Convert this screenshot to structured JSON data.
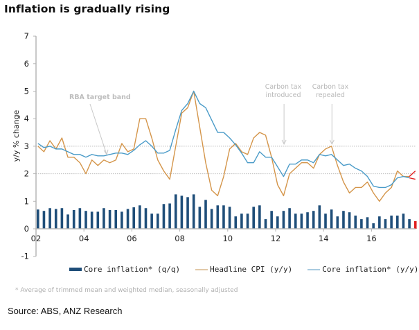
{
  "page": {
    "title": "Inflation is gradually rising",
    "footnote": "* Average of trimmed mean and weighted median, seasonally adjusted",
    "source": "Source: ABS, ANZ Research"
  },
  "chart_data": {
    "type": "bar+line",
    "title": "Inflation is gradually rising",
    "xlabel": "",
    "ylabel": "y/y % change",
    "ylim": [
      -1,
      7
    ],
    "yticks": [
      "7",
      "6",
      "5",
      "4",
      "3",
      "2",
      "1",
      "0",
      "-1"
    ],
    "ytick_values": [
      7,
      6,
      5,
      4,
      3,
      2,
      1,
      0,
      -1
    ],
    "xticks": [
      "02",
      "04",
      "06",
      "08",
      "10",
      "12",
      "14",
      "16"
    ],
    "xtick_years": [
      2002,
      2004,
      2006,
      2008,
      2010,
      2012,
      2014,
      2016
    ],
    "x_start": "2002Q1",
    "frequency": "quarterly",
    "reference_lines": [
      {
        "y": 2,
        "style": "dotted",
        "color": "#bbbbbb"
      },
      {
        "y": 3,
        "style": "dotted",
        "color": "#bbbbbb"
      }
    ],
    "annotations": [
      {
        "text": "RBA target band",
        "bold": true,
        "target_x": 2004.95,
        "target_y": 2.7
      },
      {
        "text_lines": [
          "Carbon tax",
          "introduced"
        ],
        "bold": false,
        "target_x": 2012.35,
        "target_y": 3.0
      },
      {
        "text_lines": [
          "Carbon tax",
          "repealed"
        ],
        "bold": false,
        "target_x": 2014.35,
        "target_y": 3.0
      }
    ],
    "legend": [
      {
        "label": "Core inflation* (q/q)",
        "type": "bar",
        "color": "#1f4e79"
      },
      {
        "label": "Headline CPI (y/y)",
        "type": "line",
        "color": "#d4954a"
      },
      {
        "label": "Core inflation* (y/y)",
        "type": "line",
        "color": "#4a9bc8"
      }
    ],
    "legend_position": "bottom",
    "latest_highlight_color": "#e02020",
    "series": [
      {
        "name": "Core inflation* (q/q)",
        "type": "bar",
        "color": "#1f4e79",
        "values": [
          0.7,
          0.65,
          0.75,
          0.72,
          0.75,
          0.52,
          0.68,
          0.75,
          0.65,
          0.62,
          0.62,
          0.75,
          0.68,
          0.68,
          0.62,
          0.72,
          0.78,
          0.85,
          0.75,
          0.55,
          0.55,
          0.9,
          0.92,
          1.25,
          1.2,
          1.15,
          1.25,
          0.8,
          1.05,
          0.72,
          0.85,
          0.85,
          0.8,
          0.45,
          0.55,
          0.55,
          0.8,
          0.85,
          0.35,
          0.65,
          0.45,
          0.65,
          0.75,
          0.55,
          0.55,
          0.6,
          0.65,
          0.85,
          0.55,
          0.7,
          0.45,
          0.65,
          0.6,
          0.48,
          0.35,
          0.42,
          0.2,
          0.45,
          0.35,
          0.48,
          0.48,
          0.55,
          0.35,
          0.28
        ]
      },
      {
        "name": "Headline CPI (y/y)",
        "type": "line",
        "color": "#d4954a",
        "values": [
          3.0,
          2.8,
          3.2,
          2.9,
          3.3,
          2.6,
          2.6,
          2.4,
          2.0,
          2.5,
          2.3,
          2.5,
          2.4,
          2.5,
          3.1,
          2.8,
          2.9,
          4.0,
          4.0,
          3.3,
          2.5,
          2.1,
          1.8,
          3.0,
          4.2,
          4.4,
          5.0,
          3.7,
          2.4,
          1.4,
          1.2,
          1.9,
          2.9,
          3.1,
          2.8,
          2.7,
          3.3,
          3.5,
          3.4,
          2.6,
          1.6,
          1.2,
          2.0,
          2.2,
          2.4,
          2.4,
          2.2,
          2.7,
          2.9,
          3.0,
          2.3,
          1.7,
          1.3,
          1.5,
          1.5,
          1.7,
          1.3,
          1.0,
          1.3,
          1.5,
          2.1,
          1.9,
          1.9,
          2.1
        ]
      },
      {
        "name": "Core inflation* (y/y)",
        "type": "line",
        "color": "#4a9bc8",
        "values": [
          3.1,
          2.95,
          3.0,
          2.9,
          2.9,
          2.8,
          2.7,
          2.7,
          2.6,
          2.7,
          2.65,
          2.65,
          2.7,
          2.75,
          2.75,
          2.7,
          2.85,
          3.05,
          3.2,
          3.0,
          2.75,
          2.75,
          2.85,
          3.6,
          4.3,
          4.55,
          5.0,
          4.55,
          4.4,
          3.95,
          3.5,
          3.5,
          3.3,
          3.05,
          2.75,
          2.4,
          2.4,
          2.8,
          2.6,
          2.6,
          2.25,
          1.9,
          2.35,
          2.35,
          2.5,
          2.5,
          2.4,
          2.7,
          2.65,
          2.7,
          2.5,
          2.3,
          2.35,
          2.2,
          2.1,
          1.9,
          1.55,
          1.5,
          1.5,
          1.6,
          1.85,
          1.9,
          1.85,
          1.8
        ]
      }
    ]
  }
}
